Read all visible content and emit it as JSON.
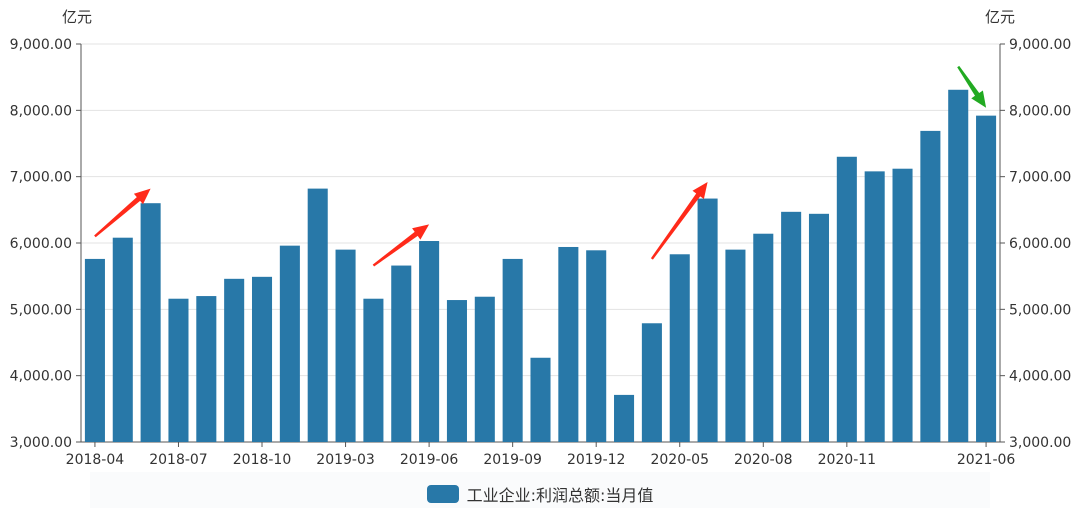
{
  "chart_data": {
    "type": "bar",
    "unit_left": "亿元",
    "unit_right": "亿元",
    "ylim": [
      3000,
      9000
    ],
    "yticks": [
      3000,
      4000,
      5000,
      6000,
      7000,
      8000,
      9000
    ],
    "ytick_labels": [
      "3,000.00",
      "4,000.00",
      "5,000.00",
      "6,000.00",
      "7,000.00",
      "8,000.00",
      "9,000.00"
    ],
    "grid": true,
    "legend_position": "bottom-center",
    "categories": [
      "2018-04",
      "2018-05",
      "2018-06",
      "2018-07",
      "2018-08",
      "2018-09",
      "2018-10",
      "2018-11",
      "2018-12",
      "2019-03",
      "2019-04",
      "2019-05",
      "2019-06",
      "2019-07",
      "2019-08",
      "2019-09",
      "2019-10",
      "2019-11",
      "2019-12",
      "2020-03",
      "2020-04",
      "2020-05",
      "2020-06",
      "2020-07",
      "2020-08",
      "2020-09",
      "2020-10",
      "2020-11",
      "2020-12",
      "2021-03",
      "2021-04",
      "2021-05",
      "2021-06"
    ],
    "xtick_labels": [
      {
        "index": 0,
        "label": "2018-04"
      },
      {
        "index": 3,
        "label": "2018-07"
      },
      {
        "index": 6,
        "label": "2018-10"
      },
      {
        "index": 9,
        "label": "2019-03"
      },
      {
        "index": 12,
        "label": "2019-06"
      },
      {
        "index": 15,
        "label": "2019-09"
      },
      {
        "index": 18,
        "label": "2019-12"
      },
      {
        "index": 21,
        "label": "2020-05"
      },
      {
        "index": 24,
        "label": "2020-08"
      },
      {
        "index": 27,
        "label": "2020-11"
      },
      {
        "index": 32,
        "label": "2021-06"
      }
    ],
    "series": [
      {
        "name": "工业企业:利润总额:当月值",
        "color": "#2878a8",
        "values": [
          5760,
          6080,
          6600,
          5160,
          5200,
          5460,
          5490,
          5960,
          6820,
          5900,
          5160,
          5660,
          6030,
          5140,
          5190,
          5760,
          4270,
          5940,
          5890,
          3710,
          4790,
          5830,
          6670,
          5900,
          6140,
          6470,
          6440,
          7300,
          7080,
          7120,
          7690,
          8310,
          7920
        ]
      }
    ],
    "annotations": [
      {
        "type": "arrow",
        "color": "#ff2a1a",
        "from_index": 0,
        "from_value": 6100,
        "to_index": 2,
        "to_value": 6820
      },
      {
        "type": "arrow",
        "color": "#ff2a1a",
        "from_index": 10,
        "from_value": 5660,
        "to_index": 12,
        "to_value": 6280
      },
      {
        "type": "arrow",
        "color": "#ff2a1a",
        "from_index": 20,
        "from_value": 5760,
        "to_index": 22,
        "to_value": 6920
      },
      {
        "type": "arrow",
        "color": "#22aa22",
        "from_index": 31,
        "from_value": 8660,
        "to_index": 32,
        "to_value": 8040
      }
    ]
  }
}
